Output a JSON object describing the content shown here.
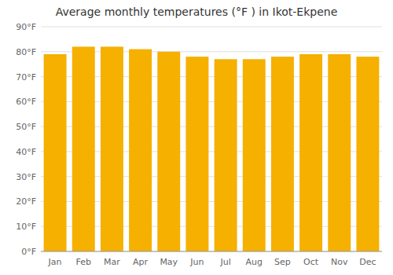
{
  "chart_data": {
    "type": "bar",
    "title": "Average monthly temperatures (°F ) in Ikot-Ekpene",
    "categories": [
      "Jan",
      "Feb",
      "Mar",
      "Apr",
      "May",
      "Jun",
      "Jul",
      "Aug",
      "Sep",
      "Oct",
      "Nov",
      "Dec"
    ],
    "values": [
      79,
      82,
      82,
      81,
      80,
      78,
      77,
      77,
      78,
      79,
      79,
      78
    ],
    "color": "#F5B000",
    "ylim": [
      0,
      90
    ],
    "yticks": [
      {
        "value": 0,
        "label": "0°F"
      },
      {
        "value": 10,
        "label": "10°F"
      },
      {
        "value": 20,
        "label": "20°F"
      },
      {
        "value": 30,
        "label": "30°F"
      },
      {
        "value": 40,
        "label": "40°F"
      },
      {
        "value": 50,
        "label": "50°F"
      },
      {
        "value": 60,
        "label": "60°F"
      },
      {
        "value": 70,
        "label": "70°F"
      },
      {
        "value": 80,
        "label": "80°F"
      },
      {
        "value": 90,
        "label": "90°F"
      }
    ],
    "grid": true
  }
}
